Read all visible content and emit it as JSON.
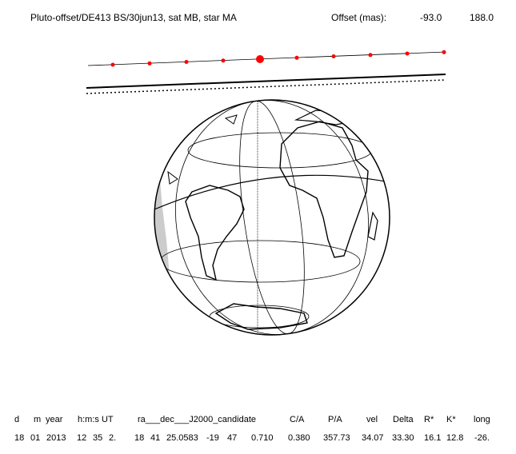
{
  "header": {
    "title": "Pluto-offset/DE413 BS/30jun13, sat MB, star MA",
    "offset_label": "Offset (mas):",
    "offset_x": "-93.0",
    "offset_y": "188.0"
  },
  "table": {
    "header": [
      "d",
      "m",
      "year",
      "h:m:s UT",
      "ra___dec___J2000_candidate",
      "C/A",
      "P/A",
      "vel",
      "Delta",
      "R*",
      "K*",
      "long"
    ],
    "rows": [
      [
        "18",
        "01",
        "2013",
        "12",
        "35",
        "2.",
        "18",
        "41",
        "25.0583",
        "-19",
        "47",
        "0.710",
        "0.380",
        "357.73",
        "34.07",
        "33.30",
        "16.1",
        "12.8",
        "-26."
      ]
    ]
  }
}
